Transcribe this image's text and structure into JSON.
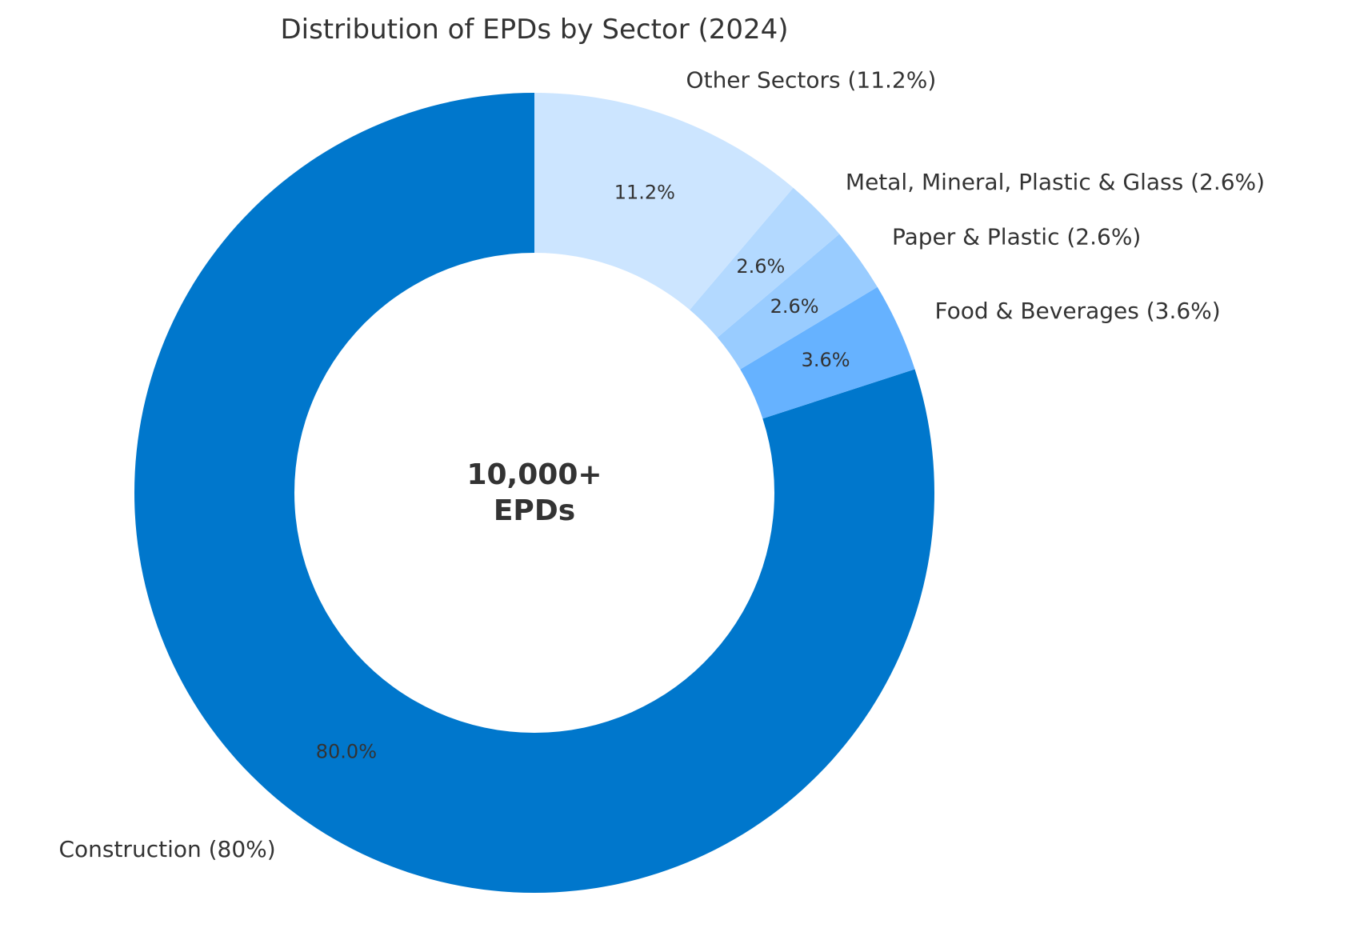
{
  "chart_data": {
    "type": "pie",
    "variant": "donut",
    "title": "Distribution of EPDs by Sector (2024)",
    "center_text": [
      "10,000+",
      "EPDs"
    ],
    "legend": "none",
    "start_angle_deg": 90,
    "direction": "counterclockwise",
    "slices": [
      {
        "label": "Construction (80%)",
        "value": 80.0,
        "pct_text": "80.0%",
        "color": "#0077CC"
      },
      {
        "label": "Food & Beverages (3.6%)",
        "value": 3.6,
        "pct_text": "3.6%",
        "color": "#66B2FF"
      },
      {
        "label": "Paper & Plastic (2.6%)",
        "value": 2.6,
        "pct_text": "2.6%",
        "color": "#99CCFF"
      },
      {
        "label": "Metal, Mineral, Plastic & Glass (2.6%)",
        "value": 2.6,
        "pct_text": "2.6%",
        "color": "#B3D9FF"
      },
      {
        "label": "Other Sectors (11.2%)",
        "value": 11.2,
        "pct_text": "11.2%",
        "color": "#CCE5FF"
      }
    ]
  }
}
